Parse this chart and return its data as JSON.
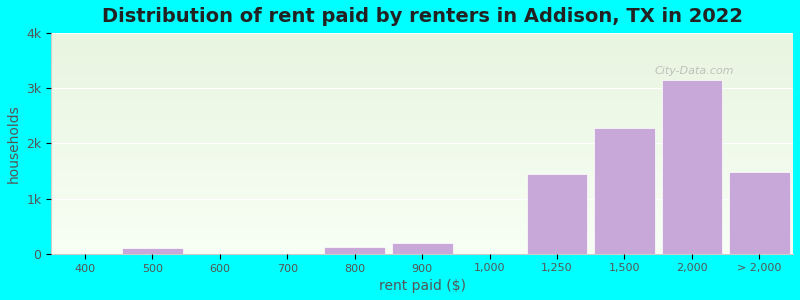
{
  "title": "Distribution of rent paid by renters in Addison, TX in 2022",
  "xlabel": "rent paid ($)",
  "ylabel": "households",
  "background_color": "#00FFFF",
  "plot_bg_gradient_top": "#e8f5e0",
  "plot_bg_gradient_bottom": "#f0f8e8",
  "bar_color": "#c8a8d8",
  "bar_edge_color": "#ffffff",
  "categories": [
    "400",
    "500",
    "600",
    "700",
    "800",
    "900",
    "1,000",
    "1,250",
    "1,500",
    "2,000",
    "> 2,000"
  ],
  "values": [
    0,
    100,
    0,
    0,
    120,
    200,
    0,
    1450,
    2280,
    3150,
    1490
  ],
  "bar_positions": [
    0,
    1,
    2,
    3,
    4,
    5,
    6,
    7,
    8,
    9,
    10
  ],
  "ylim": [
    0,
    4000
  ],
  "yticks": [
    0,
    1000,
    2000,
    3000,
    4000
  ],
  "ytick_labels": [
    "0",
    "1k",
    "2k",
    "3k",
    "4k"
  ],
  "title_fontsize": 14,
  "axis_label_fontsize": 10,
  "tick_fontsize": 9,
  "watermark_text": "City-Data.com"
}
